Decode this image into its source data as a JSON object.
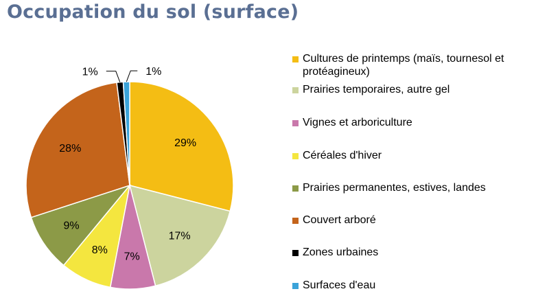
{
  "page": {
    "title": "Occupation du sol (surface)",
    "title_color": "#5a6f93"
  },
  "chart_data": {
    "type": "pie",
    "title": "",
    "legend_position": "right",
    "slices": [
      {
        "label": "Cultures de printemps (maïs, tournesol et protéagineux)",
        "value": 29,
        "display": "29%",
        "color": "#f4bd14"
      },
      {
        "label": "Prairies temporaires, autre gel",
        "value": 17,
        "display": "17%",
        "color": "#ccd49e"
      },
      {
        "label": "Vignes et arboriculture",
        "value": 7,
        "display": "7%",
        "color": "#c978ab"
      },
      {
        "label": "Céréales d'hiver",
        "value": 8,
        "display": "8%",
        "color": "#f4e63f"
      },
      {
        "label": "Prairies permanentes, estives, landes",
        "value": 9,
        "display": "9%",
        "color": "#8c9a47"
      },
      {
        "label": "Couvert arboré",
        "value": 28,
        "display": "28%",
        "color": "#c4641b"
      },
      {
        "label": "Zones urbaines",
        "value": 1,
        "display": "1%",
        "color": "#000000"
      },
      {
        "label": "Surfaces d'eau",
        "value": 1,
        "display": "1%",
        "color": "#3ba3d9"
      }
    ]
  }
}
